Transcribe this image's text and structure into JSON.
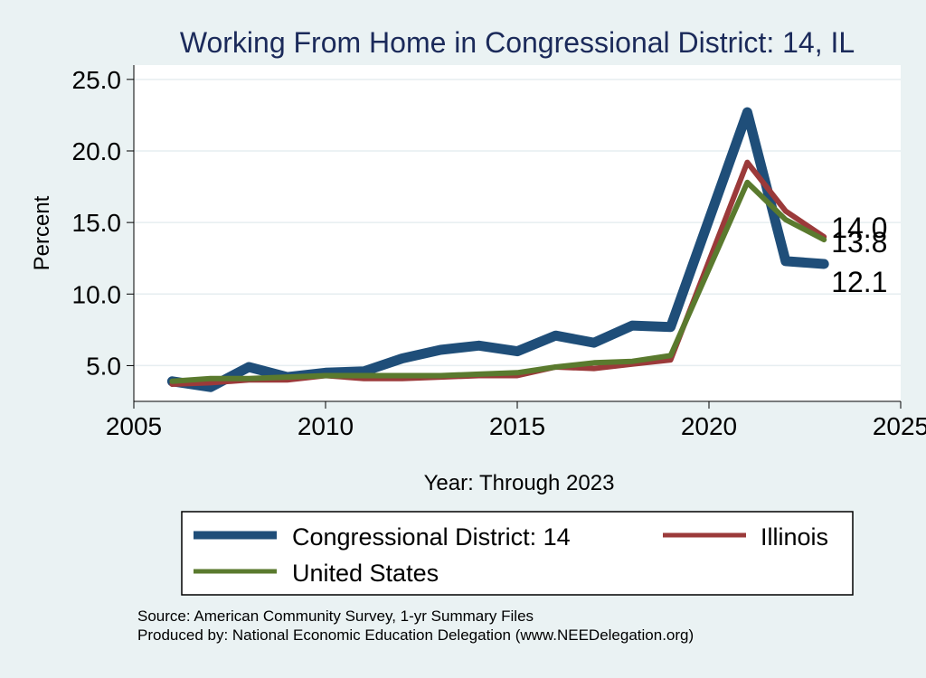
{
  "chart_data": {
    "type": "line",
    "title": "Working From Home in Congressional District: 14, IL",
    "xlabel": "Year: Through 2023",
    "ylabel": "Percent",
    "xlim": [
      2005,
      2025
    ],
    "ylim": [
      2.5,
      26.0
    ],
    "xticks": [
      2005,
      2010,
      2015,
      2020,
      2025
    ],
    "xtick_labels": [
      "2005",
      "2010",
      "2015",
      "2020",
      "2025"
    ],
    "yticks": [
      5,
      10,
      15,
      20,
      25
    ],
    "ytick_labels": [
      "5.0",
      "10.0",
      "15.0",
      "20.0",
      "25.0"
    ],
    "grid": true,
    "x": [
      2006,
      2007,
      2008,
      2009,
      2010,
      2011,
      2012,
      2013,
      2014,
      2015,
      2016,
      2017,
      2018,
      2019,
      2021,
      2022,
      2023
    ],
    "series": [
      {
        "name": "Congressional District: 14",
        "color": "#1f4e79",
        "values": [
          3.9,
          3.5,
          4.9,
          4.2,
          4.5,
          4.6,
          5.5,
          6.1,
          6.4,
          6.0,
          7.1,
          6.6,
          7.8,
          7.7,
          22.7,
          12.3,
          12.1
        ],
        "end_label": "12.1"
      },
      {
        "name": "Illinois",
        "color": "#9b3a3a",
        "values": [
          3.7,
          3.8,
          4.0,
          4.0,
          4.3,
          4.1,
          4.1,
          4.2,
          4.3,
          4.3,
          4.9,
          4.8,
          5.1,
          5.4,
          19.2,
          15.8,
          14.0
        ],
        "end_label": "14.0"
      },
      {
        "name": "United States",
        "color": "#5a7a2e",
        "values": [
          3.9,
          4.1,
          4.1,
          4.2,
          4.3,
          4.3,
          4.3,
          4.3,
          4.4,
          4.5,
          4.9,
          5.2,
          5.3,
          5.7,
          17.8,
          15.2,
          13.8
        ],
        "end_label": "13.8"
      }
    ],
    "legend": {
      "placement": "bottom",
      "entries": [
        "Congressional District: 14",
        "Illinois",
        "United States"
      ]
    },
    "notes": [
      "Source: American Community Survey, 1-yr Summary Files",
      "Produced by: National Economic Education Delegation (www.NEEDelegation.org)"
    ]
  }
}
